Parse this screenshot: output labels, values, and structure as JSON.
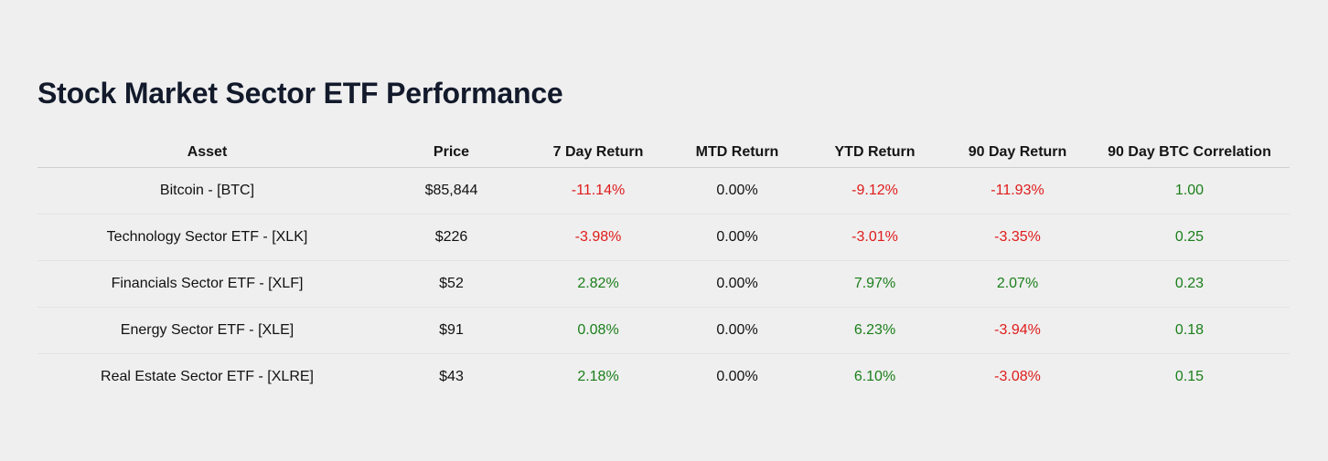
{
  "title": "Stock Market Sector ETF Performance",
  "table": {
    "headers": [
      "Asset",
      "Price",
      "7 Day Return",
      "MTD Return",
      "YTD Return",
      "90 Day Return",
      "90 Day BTC Correlation"
    ],
    "rows": [
      [
        "Bitcoin - [BTC]",
        "$85,844",
        "-11.14%",
        "0.00%",
        "-9.12%",
        "-11.93%",
        "1.00"
      ],
      [
        "Technology Sector ETF - [XLK]",
        "$226",
        "-3.98%",
        "0.00%",
        "-3.01%",
        "-3.35%",
        "0.25"
      ],
      [
        "Financials Sector ETF - [XLF]",
        "$52",
        "2.82%",
        "0.00%",
        "7.97%",
        "2.07%",
        "0.23"
      ],
      [
        "Energy Sector ETF - [XLE]",
        "$91",
        "0.08%",
        "0.00%",
        "6.23%",
        "-3.94%",
        "0.18"
      ],
      [
        "Real Estate Sector ETF - [XLRE]",
        "$43",
        "2.18%",
        "0.00%",
        "6.10%",
        "-3.08%",
        "0.15"
      ]
    ]
  },
  "colors": {
    "positive": "#1a7f1a",
    "negative": "#e01b1b",
    "neutral": "#111111"
  }
}
